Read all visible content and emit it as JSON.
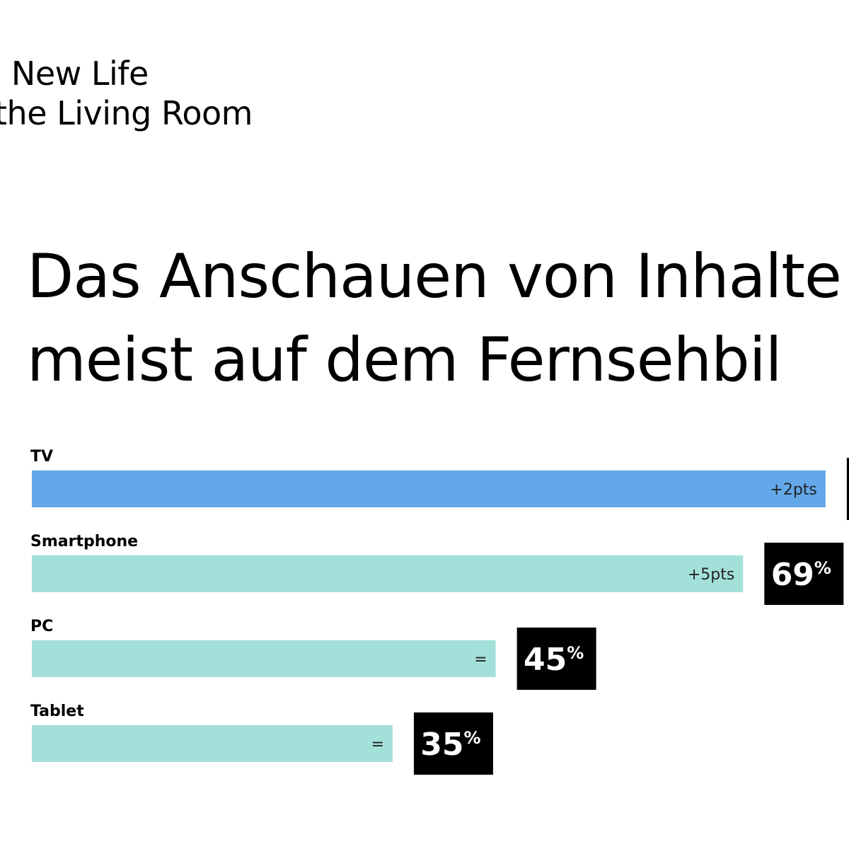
{
  "brand": {
    "line1": "e New Life",
    "line2": "the Living Room"
  },
  "headline": {
    "line1": "Das Anschauen von Inhalte",
    "line2": "meist auf dem Fernsehbil"
  },
  "colors": {
    "highlight_bar": "#62a8e8",
    "bar": "#a4e0da",
    "badge_bg": "#000000",
    "badge_text": "#ffffff"
  },
  "chart_data": {
    "type": "bar",
    "orientation": "horizontal",
    "unit": "%",
    "xlim": [
      0,
      100
    ],
    "categories": [
      "TV",
      "Smartphone",
      "PC",
      "Tablet"
    ],
    "values": [
      77,
      69,
      45,
      35
    ],
    "value_labels": [
      "",
      "69%",
      "45%",
      "35%"
    ],
    "changes": [
      "+2pts",
      "+5pts",
      "=",
      "="
    ],
    "highlighted": [
      true,
      false,
      false,
      false
    ]
  }
}
